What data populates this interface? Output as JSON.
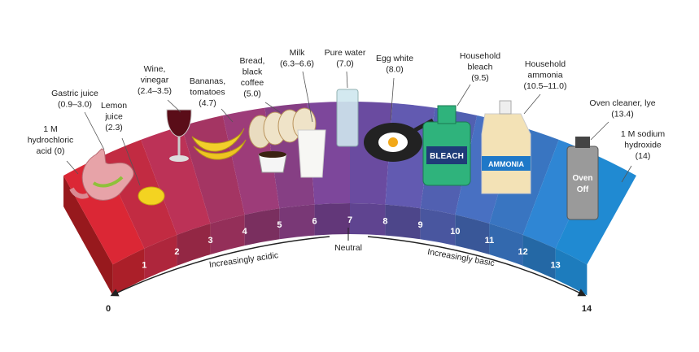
{
  "labels": [
    {
      "lines": [
        "1 M",
        "hydrochloric",
        "acid (0)"
      ]
    },
    {
      "lines": [
        "Gastric juice",
        "(0.9–3.0)"
      ]
    },
    {
      "lines": [
        "Lemon",
        "juice",
        "(2.3)"
      ]
    },
    {
      "lines": [
        "Wine,",
        "vinegar",
        "(2.4–3.5)"
      ]
    },
    {
      "lines": [
        "Bananas,",
        "tomatoes",
        "(4.7)"
      ]
    },
    {
      "lines": [
        "Bread,",
        "black",
        "coffee",
        "(5.0)"
      ]
    },
    {
      "lines": [
        "Milk",
        "(6.3–6.6)"
      ]
    },
    {
      "lines": [
        "Pure water",
        "(7.0)"
      ]
    },
    {
      "lines": [
        "Egg white",
        "(8.0)"
      ]
    },
    {
      "lines": [
        "Household",
        "bleach",
        "(9.5)"
      ]
    },
    {
      "lines": [
        "Household",
        "ammonia",
        "(10.5–11.0)"
      ]
    },
    {
      "lines": [
        "Oven cleaner, lye",
        "(13.4)"
      ]
    },
    {
      "lines": [
        "1 M sodium",
        "hydroxide",
        "(14)"
      ]
    }
  ],
  "scale": [
    1,
    2,
    3,
    4,
    5,
    6,
    7,
    8,
    9,
    10,
    11,
    12,
    13
  ],
  "ends": {
    "low": "0",
    "high": "14"
  },
  "neutral": "Neutral",
  "acidic": "Increasingly acidic",
  "basic": "Increasingly basic",
  "product_labels": {
    "bleach": "BLEACH",
    "ammonia": "AMMONIA",
    "oven": [
      "Oven",
      "Off"
    ]
  }
}
